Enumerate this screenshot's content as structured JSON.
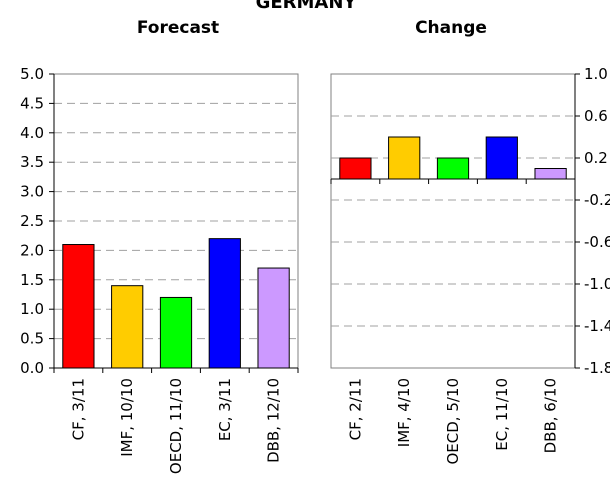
{
  "title": "GERMANY",
  "chart_data": [
    {
      "type": "bar",
      "title": "Forecast",
      "categories": [
        "CF, 3/11",
        "IMF, 10/10",
        "OECD, 11/10",
        "EC, 3/11",
        "DBB, 12/10"
      ],
      "values": [
        2.1,
        1.4,
        1.2,
        2.2,
        1.7
      ],
      "colors": [
        "#ff0000",
        "#ffcc00",
        "#00ff00",
        "#0000ff",
        "#cc99ff"
      ],
      "ylim": [
        0.0,
        5.0
      ],
      "yticks": [
        "0.0",
        "0.5",
        "1.0",
        "1.5",
        "2.0",
        "2.5",
        "3.0",
        "3.5",
        "4.0",
        "4.5",
        "5.0"
      ],
      "yaxis_side": "left",
      "grid": true
    },
    {
      "type": "bar",
      "title": "Change",
      "categories": [
        "CF, 2/11",
        "IMF, 4/10",
        "OECD, 5/10",
        "EC, 11/10",
        "DBB, 6/10"
      ],
      "values": [
        0.2,
        0.4,
        0.2,
        0.4,
        0.1
      ],
      "colors": [
        "#ff0000",
        "#ffcc00",
        "#00ff00",
        "#0000ff",
        "#cc99ff"
      ],
      "ylim": [
        -1.8,
        1.0
      ],
      "yticks": [
        "-1.8",
        "-1.4",
        "-1.0",
        "-0.6",
        "-0.2",
        "0.2",
        "0.6",
        "1.0"
      ],
      "yaxis_side": "right",
      "grid": true
    }
  ]
}
